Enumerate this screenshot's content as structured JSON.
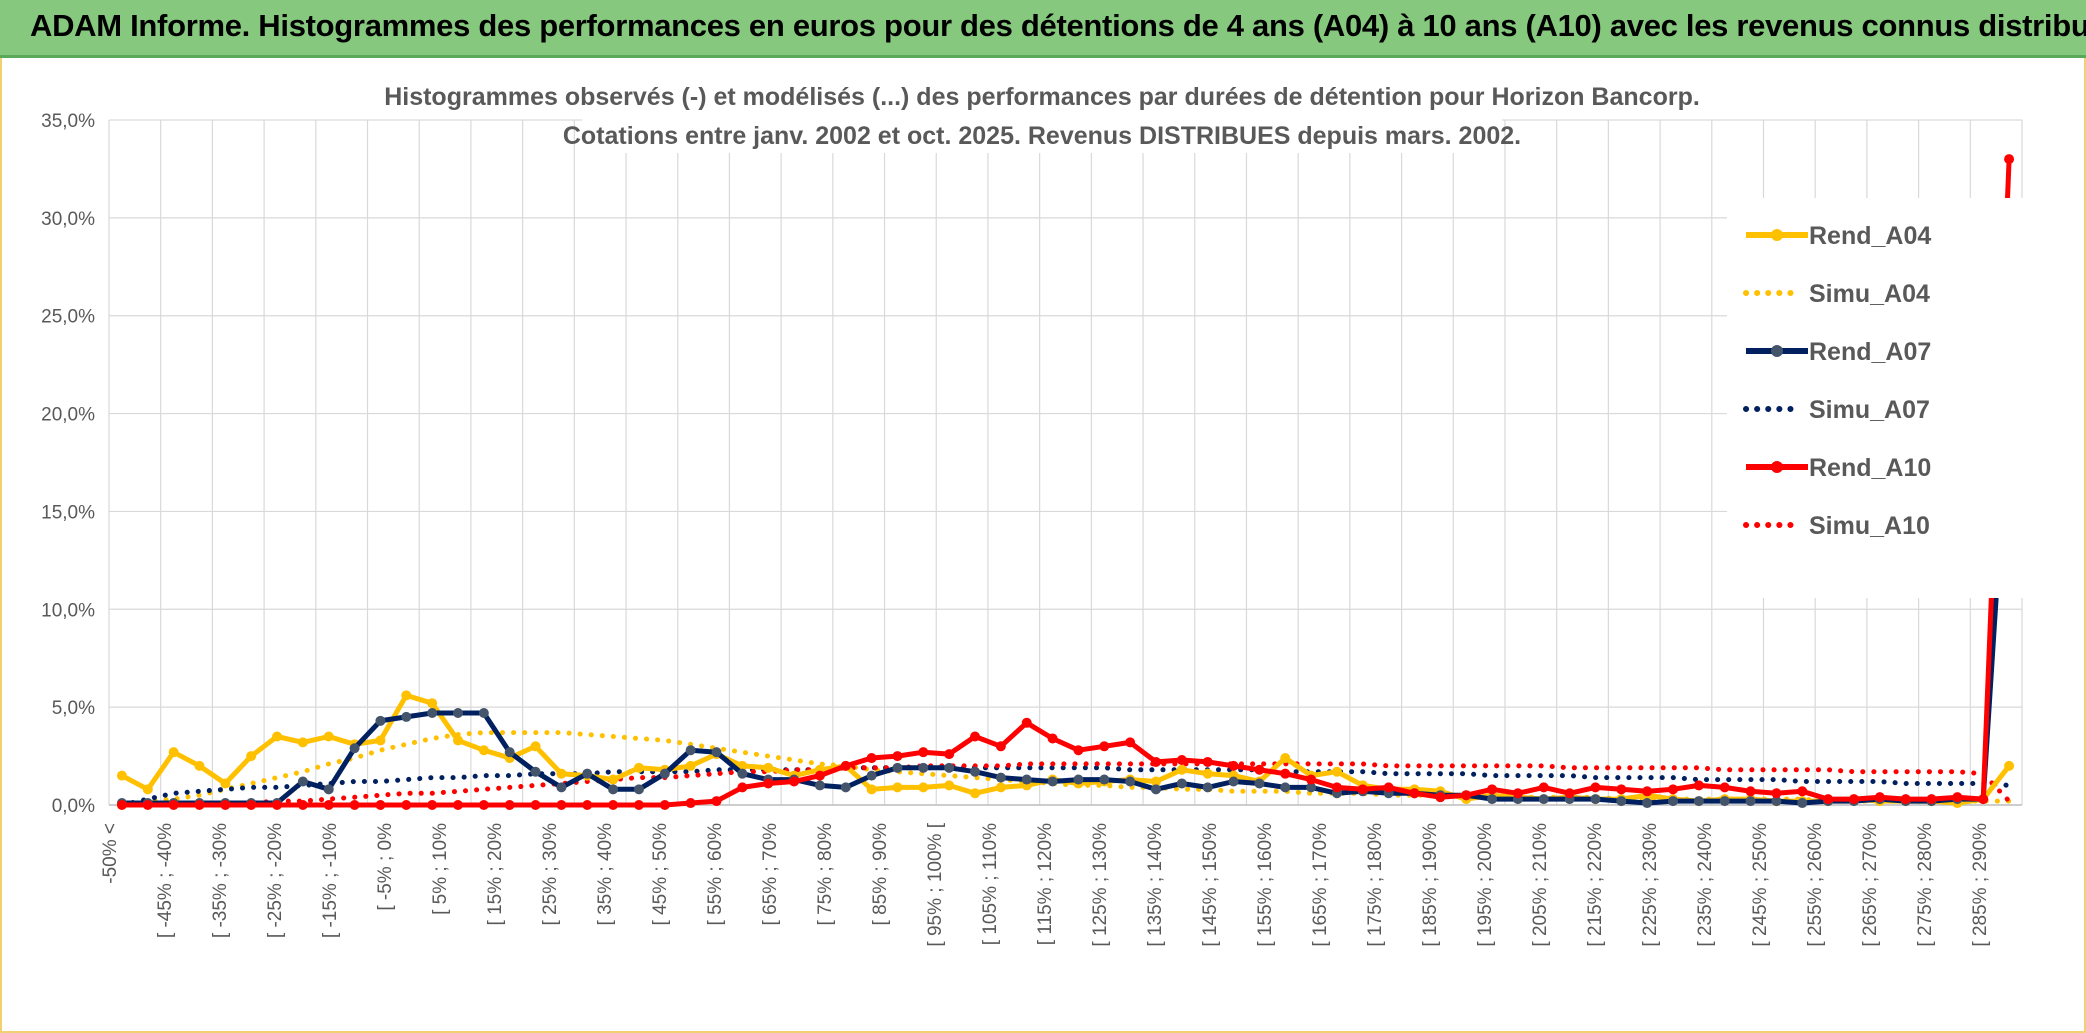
{
  "banner": {
    "title": "ADAM Informe. Histogrammes des performances en euros pour des détentions de 4 ans (A04) à 10 ans (A10) avec les revenus connus distribués"
  },
  "chart_data": {
    "type": "line",
    "title_lines": [
      "Histogrammes observés (-) et modélisés (...) des performances par durées de détention pour Horizon Bancorp.",
      "Cotations entre janv. 2002 et oct. 2025. Revenus DISTRIBUES depuis mars. 2002."
    ],
    "xlabel": "",
    "ylabel": "",
    "ylim": [
      0,
      35
    ],
    "y_ticks": [
      "0,0%",
      "5,0%",
      "10,0%",
      "15,0%",
      "20,0%",
      "25,0%",
      "30,0%",
      "35,0%"
    ],
    "y_tick_values": [
      0,
      5,
      10,
      15,
      20,
      25,
      30,
      35
    ],
    "x_tick_labels": [
      "-50% <",
      "[ -45% ; -40%",
      "[ -35% ; -30%",
      "[ -25% ; -20%",
      "[ -15% ; -10%",
      "[ -5% ; 0%",
      "[ 5% ; 10%",
      "[ 15% ; 20%",
      "[ 25% ; 30%",
      "[ 35% ; 40%",
      "[ 45% ; 50%",
      "[ 55% ; 60%",
      "[ 65% ; 70%",
      "[ 75% ; 80%",
      "[ 85% ; 90%",
      "[ 95% ; 100% [",
      "[ 105% ; 110%",
      "[ 115% ; 120%",
      "[ 125% ; 130%",
      "[ 135% ; 140%",
      "[ 145% ; 150%",
      "[ 155% ; 160%",
      "[ 165% ; 170%",
      "[ 175% ; 180%",
      "[ 185% ; 190%",
      "[ 195% ; 200%",
      "[ 205% ; 210%",
      "[ 215% ; 220%",
      "[ 225% ; 230%",
      "[ 235% ; 240%",
      "[ 245% ; 250%",
      "[ 255% ; 260%",
      "[ 265% ; 270%",
      "[ 275% ; 280%",
      "[ 285% ; 290%"
    ],
    "grid": true,
    "legend_position": "right",
    "colors": {
      "A04": "#ffc000",
      "A07": "#002060",
      "A10": "#ff0000"
    },
    "series": [
      {
        "name": "Rend_A04",
        "style": "solid",
        "color": "#ffc000",
        "values": [
          1.5,
          0.8,
          2.7,
          2.0,
          1.1,
          2.5,
          3.5,
          3.2,
          3.5,
          3.1,
          3.3,
          5.6,
          5.2,
          3.3,
          2.8,
          2.4,
          3.0,
          1.6,
          1.5,
          1.3,
          1.9,
          1.8,
          2.0,
          2.6,
          2.0,
          1.9,
          1.5,
          1.8,
          2.0,
          0.8,
          0.9,
          0.9,
          1.0,
          0.6,
          0.9,
          1.0,
          1.3,
          1.1,
          1.2,
          1.3,
          1.2,
          1.8,
          1.6,
          1.5,
          1.2,
          2.4,
          1.5,
          1.7,
          1.0,
          0.8,
          0.8,
          0.7,
          0.3,
          0.5,
          0.4,
          0.3,
          0.4,
          0.3,
          0.3,
          0.5,
          0.3,
          0.2,
          0.3,
          0.3,
          0.2,
          0.2,
          0.2,
          0.3,
          0.2,
          0.2,
          0.2,
          0.1,
          0.3,
          2.0
        ]
      },
      {
        "name": "Simu_A04",
        "style": "dotted",
        "color": "#ffc000",
        "values": [
          0.0,
          0.2,
          0.3,
          0.5,
          0.8,
          1.1,
          1.4,
          1.7,
          2.1,
          2.4,
          2.8,
          3.1,
          3.4,
          3.6,
          3.7,
          3.7,
          3.7,
          3.7,
          3.6,
          3.5,
          3.4,
          3.3,
          3.1,
          2.9,
          2.7,
          2.5,
          2.3,
          2.1,
          2.0,
          1.8,
          1.7,
          1.6,
          1.5,
          1.4,
          1.3,
          1.2,
          1.1,
          1.0,
          1.0,
          0.9,
          0.9,
          0.8,
          0.8,
          0.7,
          0.7,
          0.7,
          0.6,
          0.6,
          0.6,
          0.5,
          0.5,
          0.5,
          0.5,
          0.4,
          0.4,
          0.4,
          0.4,
          0.4,
          0.3,
          0.3,
          0.3,
          0.3,
          0.3,
          0.3,
          0.3,
          0.3,
          0.2,
          0.2,
          0.2,
          0.2,
          0.2,
          0.2,
          0.2,
          0.2
        ]
      },
      {
        "name": "Rend_A07",
        "style": "solid",
        "color": "#002060",
        "values": [
          0.1,
          0.1,
          0.1,
          0.1,
          0.1,
          0.1,
          0.1,
          1.2,
          0.8,
          2.9,
          4.3,
          4.5,
          4.7,
          4.7,
          4.7,
          2.7,
          1.7,
          0.9,
          1.6,
          0.8,
          0.8,
          1.6,
          2.8,
          2.7,
          1.6,
          1.3,
          1.3,
          1.0,
          0.9,
          1.5,
          1.9,
          1.9,
          1.9,
          1.7,
          1.4,
          1.3,
          1.2,
          1.3,
          1.3,
          1.2,
          0.8,
          1.1,
          0.9,
          1.2,
          1.1,
          0.9,
          0.9,
          0.6,
          0.7,
          0.6,
          0.6,
          0.5,
          0.5,
          0.3,
          0.3,
          0.3,
          0.3,
          0.3,
          0.2,
          0.1,
          0.2,
          0.2,
          0.2,
          0.2,
          0.2,
          0.1,
          0.2,
          0.2,
          0.3,
          0.2,
          0.2,
          0.3,
          0.3,
          20.9
        ]
      },
      {
        "name": "Simu_A07",
        "style": "dotted",
        "color": "#002060",
        "values": [
          0.0,
          0.3,
          0.6,
          0.7,
          0.8,
          0.9,
          0.9,
          1.0,
          1.1,
          1.2,
          1.2,
          1.3,
          1.4,
          1.4,
          1.5,
          1.5,
          1.6,
          1.6,
          1.6,
          1.7,
          1.7,
          1.7,
          1.7,
          1.8,
          1.8,
          1.8,
          1.8,
          1.8,
          1.9,
          1.9,
          1.9,
          1.9,
          1.9,
          1.9,
          1.9,
          1.9,
          1.9,
          1.9,
          1.9,
          1.8,
          1.8,
          1.8,
          1.8,
          1.8,
          1.8,
          1.7,
          1.7,
          1.7,
          1.7,
          1.6,
          1.6,
          1.6,
          1.6,
          1.5,
          1.5,
          1.5,
          1.5,
          1.4,
          1.4,
          1.4,
          1.4,
          1.3,
          1.3,
          1.3,
          1.3,
          1.2,
          1.2,
          1.2,
          1.2,
          1.1,
          1.1,
          1.1,
          1.1,
          1.0
        ]
      },
      {
        "name": "Rend_A10",
        "style": "solid",
        "color": "#ff0000",
        "values": [
          0.0,
          0.0,
          0.0,
          0.0,
          0.0,
          0.0,
          0.0,
          0.0,
          0.0,
          0.0,
          0.0,
          0.0,
          0.0,
          0.0,
          0.0,
          0.0,
          0.0,
          0.0,
          0.0,
          0.0,
          0.0,
          0.0,
          0.1,
          0.2,
          0.9,
          1.1,
          1.2,
          1.5,
          2.0,
          2.4,
          2.5,
          2.7,
          2.6,
          3.5,
          3.0,
          4.2,
          3.4,
          2.8,
          3.0,
          3.2,
          2.2,
          2.3,
          2.2,
          2.0,
          1.8,
          1.6,
          1.3,
          0.9,
          0.8,
          0.9,
          0.6,
          0.4,
          0.5,
          0.8,
          0.6,
          0.9,
          0.6,
          0.9,
          0.8,
          0.7,
          0.8,
          1.0,
          0.9,
          0.7,
          0.6,
          0.7,
          0.3,
          0.3,
          0.4,
          0.3,
          0.3,
          0.4,
          0.3,
          33.0
        ]
      },
      {
        "name": "Simu_A10",
        "style": "dotted",
        "color": "#ff0000",
        "values": [
          0.0,
          0.0,
          0.0,
          0.1,
          0.1,
          0.1,
          0.2,
          0.2,
          0.3,
          0.4,
          0.5,
          0.6,
          0.6,
          0.7,
          0.8,
          0.9,
          1.0,
          1.1,
          1.2,
          1.3,
          1.4,
          1.4,
          1.5,
          1.6,
          1.7,
          1.7,
          1.8,
          1.8,
          1.9,
          1.9,
          1.9,
          2.0,
          2.0,
          2.0,
          2.0,
          2.1,
          2.1,
          2.1,
          2.1,
          2.1,
          2.1,
          2.1,
          2.1,
          2.1,
          2.1,
          2.1,
          2.1,
          2.1,
          2.1,
          2.0,
          2.0,
          2.0,
          2.0,
          2.0,
          2.0,
          2.0,
          1.9,
          1.9,
          1.9,
          1.9,
          1.9,
          1.9,
          1.8,
          1.8,
          1.8,
          1.8,
          1.8,
          1.7,
          1.7,
          1.7,
          1.7,
          1.7,
          1.6,
          0.2
        ]
      }
    ]
  }
}
